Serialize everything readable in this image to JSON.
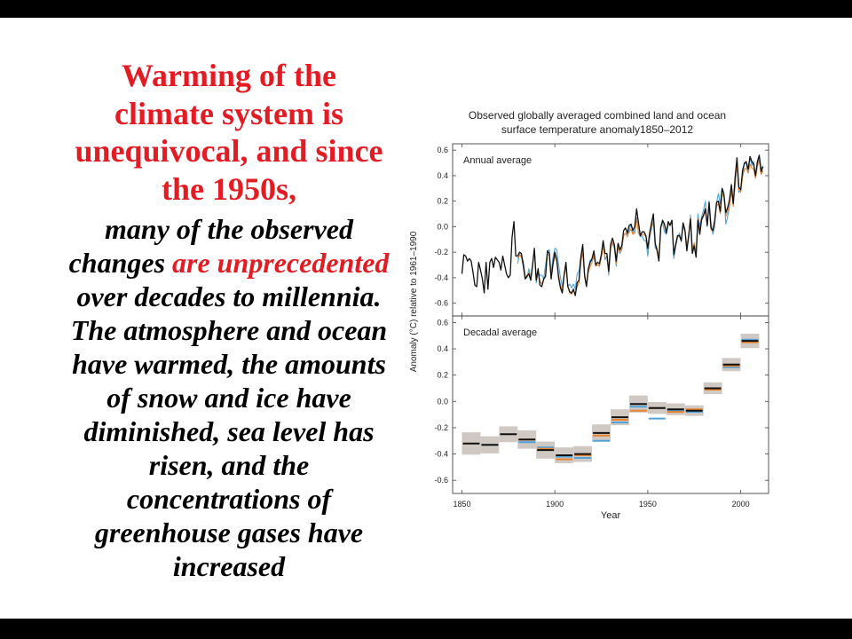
{
  "colors": {
    "heading": "#e31b23",
    "highlight": "#e31b23",
    "body": "#000000",
    "frame_bars": "#000000"
  },
  "text_block": {
    "heading": [
      "Warming of the",
      "climate system is",
      "unequivocal, and since",
      "the 1950s,"
    ],
    "body_first": "many of the observed",
    "body_mixed": {
      "plain": "changes",
      "highlight": "are unprecedented"
    },
    "body_rest": [
      "over decades to millennia.",
      "The atmosphere and ocean",
      "have warmed, the amounts",
      "of snow and ice have",
      "diminished, sea level has",
      "risen, and the",
      "concentrations of",
      "greenhouse gases have",
      "increased"
    ]
  },
  "chart_data": {
    "type": "line",
    "title": [
      "Observed globally averaged combined land and ocean",
      "surface temperature anomaly1850–2012"
    ],
    "xlabel": "Year",
    "ylabel": "Anomaly (°C) relative to 1961–1990",
    "xlim": [
      1845,
      2015
    ],
    "x_ticks": [
      "1850",
      "1900",
      "1950",
      "2000"
    ],
    "grid": false,
    "legend": "none",
    "panels": [
      {
        "label": "Annual average",
        "type": "line",
        "ylim": [
          -0.7,
          0.65
        ],
        "y_ticks": [
          "0.6",
          "0.4",
          "0.2",
          "0.0",
          "-0.2",
          "-0.4",
          "-0.6"
        ],
        "series": [
          {
            "color": "#111111",
            "x_start": 1850,
            "values": [
              -0.37,
              -0.22,
              -0.23,
              -0.27,
              -0.25,
              -0.27,
              -0.36,
              -0.46,
              -0.47,
              -0.28,
              -0.34,
              -0.41,
              -0.52,
              -0.28,
              -0.49,
              -0.28,
              -0.25,
              -0.32,
              -0.24,
              -0.26,
              -0.28,
              -0.34,
              -0.23,
              -0.3,
              -0.37,
              -0.4,
              -0.38,
              -0.08,
              0.04,
              -0.23,
              -0.23,
              -0.2,
              -0.21,
              -0.3,
              -0.41,
              -0.39,
              -0.37,
              -0.42,
              -0.31,
              -0.17,
              -0.42,
              -0.33,
              -0.46,
              -0.47,
              -0.41,
              -0.39,
              -0.19,
              -0.21,
              -0.41,
              -0.29,
              -0.2,
              -0.26,
              -0.4,
              -0.48,
              -0.52,
              -0.38,
              -0.28,
              -0.47,
              -0.51,
              -0.52,
              -0.49,
              -0.54,
              -0.44,
              -0.42,
              -0.24,
              -0.14,
              -0.38,
              -0.47,
              -0.33,
              -0.28,
              -0.25,
              -0.19,
              -0.3,
              -0.28,
              -0.29,
              -0.22,
              -0.11,
              -0.21,
              -0.21,
              -0.35,
              -0.14,
              -0.09,
              -0.14,
              -0.27,
              -0.13,
              -0.18,
              -0.15,
              -0.03,
              -0.01,
              -0.05,
              0.01,
              0.02,
              -0.03,
              0.0,
              0.14,
              0.03,
              -0.07,
              -0.04,
              -0.04,
              -0.07,
              -0.17,
              -0.05,
              0.03,
              0.1,
              -0.13,
              -0.19,
              -0.27,
              -0.01,
              0.05,
              0.02,
              -0.05,
              0.04,
              0.01,
              0.05,
              -0.22,
              -0.14,
              -0.07,
              -0.07,
              -0.11,
              0.03,
              -0.03,
              -0.19,
              -0.07,
              0.06,
              -0.21,
              -0.15,
              -0.24,
              0.05,
              -0.06,
              0.06,
              0.09,
              0.14,
              0.01,
              0.19,
              -0.01,
              -0.03,
              0.05,
              0.19,
              0.2,
              0.12,
              0.3,
              0.25,
              0.11,
              0.15,
              0.21,
              0.33,
              0.18,
              0.39,
              0.54,
              0.31,
              0.29,
              0.44,
              0.5,
              0.51,
              0.45,
              0.55,
              0.51,
              0.49,
              0.4,
              0.51,
              0.56,
              0.43,
              0.47
            ]
          },
          {
            "color": "#e8832f",
            "x_start": 1880,
            "values": [
              -0.25,
              -0.22,
              -0.24,
              -0.31,
              -0.4,
              -0.38,
              -0.36,
              -0.42,
              -0.3,
              -0.18,
              -0.4,
              -0.35,
              -0.43,
              -0.45,
              -0.42,
              -0.38,
              -0.22,
              -0.22,
              -0.4,
              -0.3,
              -0.23,
              -0.27,
              -0.38,
              -0.46,
              -0.5,
              -0.39,
              -0.31,
              -0.47,
              -0.52,
              -0.53,
              -0.5,
              -0.53,
              -0.47,
              -0.44,
              -0.28,
              -0.2,
              -0.4,
              -0.46,
              -0.36,
              -0.31,
              -0.28,
              -0.22,
              -0.31,
              -0.3,
              -0.31,
              -0.25,
              -0.15,
              -0.24,
              -0.24,
              -0.36,
              -0.17,
              -0.12,
              -0.16,
              -0.29,
              -0.16,
              -0.2,
              -0.17,
              -0.07,
              -0.05,
              -0.08,
              -0.04,
              -0.02,
              -0.06,
              -0.05,
              0.06,
              -0.04,
              -0.07,
              -0.06,
              -0.06,
              -0.08,
              -0.18,
              -0.07,
              0.0,
              0.07,
              -0.14,
              -0.17,
              -0.24,
              0.0,
              0.05,
              0.01,
              -0.04,
              0.03,
              0.02,
              0.04,
              -0.21,
              -0.15,
              -0.08,
              -0.07,
              -0.11,
              0.03,
              -0.02,
              -0.16,
              -0.06,
              0.07,
              -0.18,
              -0.13,
              -0.21,
              0.06,
              -0.03,
              0.05,
              0.08,
              0.12,
              0.01,
              0.17,
              -0.02,
              -0.04,
              0.04,
              0.16,
              0.18,
              0.1,
              0.26,
              0.23,
              0.08,
              0.12,
              0.17,
              0.28,
              0.16,
              0.34,
              0.49,
              0.29,
              0.27,
              0.39,
              0.45,
              0.46,
              0.42,
              0.49,
              0.46,
              0.45,
              0.38,
              0.47,
              0.52,
              0.41,
              0.44
            ]
          },
          {
            "color": "#4fa3d9",
            "x_start": 1880,
            "values": [
              -0.29,
              -0.21,
              -0.24,
              -0.27,
              -0.38,
              -0.4,
              -0.33,
              -0.4,
              -0.3,
              -0.18,
              -0.44,
              -0.36,
              -0.38,
              -0.38,
              -0.41,
              -0.3,
              -0.2,
              -0.18,
              -0.37,
              -0.24,
              -0.17,
              -0.18,
              -0.3,
              -0.4,
              -0.47,
              -0.38,
              -0.32,
              -0.47,
              -0.45,
              -0.48,
              -0.45,
              -0.49,
              -0.37,
              -0.35,
              -0.23,
              -0.15,
              -0.39,
              -0.47,
              -0.33,
              -0.26,
              -0.27,
              -0.23,
              -0.31,
              -0.3,
              -0.3,
              -0.23,
              -0.13,
              -0.26,
              -0.23,
              -0.38,
              -0.17,
              -0.13,
              -0.17,
              -0.31,
              -0.16,
              -0.21,
              -0.18,
              -0.07,
              -0.05,
              -0.06,
              -0.03,
              0.02,
              -0.05,
              -0.03,
              0.07,
              -0.05,
              -0.08,
              -0.07,
              -0.11,
              -0.11,
              -0.23,
              -0.09,
              -0.02,
              0.04,
              -0.17,
              -0.17,
              -0.27,
              0.01,
              0.03,
              -0.04,
              -0.06,
              0.01,
              0.02,
              0.05,
              -0.25,
              -0.16,
              -0.09,
              -0.05,
              -0.12,
              0.0,
              -0.03,
              -0.15,
              -0.08,
              0.09,
              -0.17,
              -0.13,
              -0.21,
              0.1,
              0.0,
              0.08,
              0.13,
              0.2,
              0.0,
              0.2,
              0.03,
              -0.06,
              0.0,
              0.19,
              0.26,
              0.18,
              0.3,
              0.27,
              0.02,
              0.08,
              0.16,
              0.3,
              0.19,
              0.31,
              0.49,
              0.27,
              0.29,
              0.4,
              0.5,
              0.49,
              0.42,
              0.54,
              0.48,
              0.51,
              0.38,
              0.48,
              0.56,
              0.45,
              0.48
            ]
          }
        ]
      },
      {
        "label": "Decadal average",
        "type": "bar",
        "ylim": [
          -0.7,
          0.65
        ],
        "y_ticks": [
          "0.6",
          "0.4",
          "0.2",
          "0.0",
          "-0.2",
          "-0.4",
          "-0.6"
        ],
        "x": [
          1850,
          1860,
          1870,
          1880,
          1890,
          1900,
          1910,
          1920,
          1930,
          1940,
          1950,
          1960,
          1970,
          1980,
          1990,
          2000
        ],
        "uncertainty_color": "#cbc2bc",
        "uncertainty": [
          0.085,
          0.065,
          0.06,
          0.07,
          0.065,
          0.06,
          0.06,
          0.065,
          0.06,
          0.065,
          0.045,
          0.045,
          0.04,
          0.045,
          0.05,
          0.055
        ],
        "series": [
          {
            "color": "#111111",
            "values": [
              -0.32,
              -0.33,
              -0.25,
              -0.29,
              -0.37,
              -0.41,
              -0.4,
              -0.24,
              -0.12,
              -0.02,
              -0.05,
              -0.06,
              -0.07,
              0.1,
              0.28,
              0.46
            ]
          },
          {
            "color": "#e8832f",
            "values": [
              null,
              null,
              null,
              -0.29,
              -0.36,
              -0.44,
              -0.41,
              -0.26,
              -0.14,
              -0.07,
              -0.05,
              -0.08,
              -0.06,
              0.09,
              0.27,
              0.45
            ]
          },
          {
            "color": "#4fa3d9",
            "values": [
              null,
              null,
              null,
              -0.31,
              -0.35,
              -0.42,
              -0.43,
              -0.3,
              -0.16,
              -0.04,
              -0.13,
              -0.07,
              -0.08,
              0.1,
              0.26,
              0.47
            ]
          }
        ]
      }
    ]
  }
}
